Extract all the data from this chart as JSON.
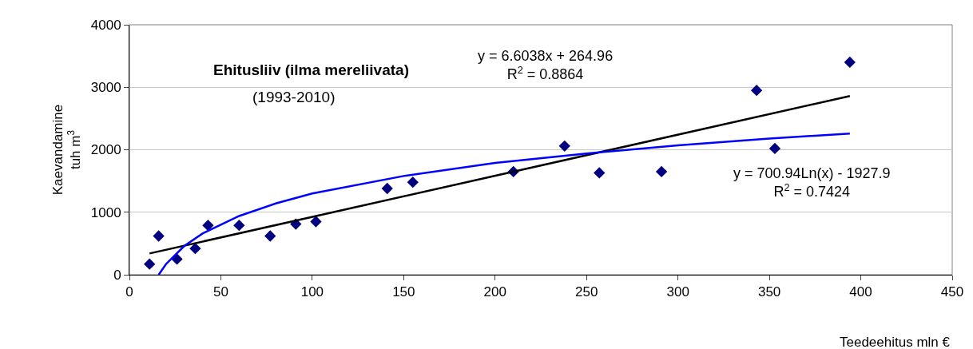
{
  "chart_data": {
    "type": "scatter",
    "ylabel": "Kaevandamine\ntuh m$^{3}$",
    "xlabel": "Teedeehitus mln €",
    "annotations": [
      "Ehitusliiv (ilma mereliivata)",
      "(1993-2010)",
      "y = 6.6038x + 264.96\nR$^{2}$ = 0.8864",
      "y = 700.94Ln(x) - 1927.9\nR$^{2}$ = 0.7424"
    ],
    "series": [
      {
        "color": "#000080",
        "marker": "diamond",
        "x": [
          11,
          16,
          26,
          36,
          43,
          60,
          77,
          91,
          102,
          141,
          155,
          210,
          238,
          257,
          291,
          343,
          353,
          394
        ],
        "values": [
          170,
          620,
          250,
          420,
          790,
          790,
          620,
          810,
          850,
          1380,
          1480,
          1650,
          2060,
          1630,
          1650,
          2950,
          2020,
          3400
        ]
      },
      {
        "type": "line",
        "color": "#000000",
        "line_style": "solid",
        "x": [
          11,
          394
        ],
        "values": [
          340,
          2860
        ]
      },
      {
        "type": "line",
        "color": "#0000ff",
        "line_style": "solid",
        "x": [
          16,
          20,
          30,
          40,
          60,
          80,
          100,
          150,
          200,
          250,
          300,
          350,
          394
        ],
        "values": [
          0,
          170,
          460,
          660,
          940,
          1140,
          1300,
          1580,
          1790,
          1940,
          2070,
          2180,
          2260
        ]
      }
    ],
    "xlim": [
      0,
      450
    ],
    "xticks": [
      0,
      50,
      100,
      150,
      200,
      250,
      300,
      350,
      400,
      450
    ],
    "ylim": [
      0,
      4000
    ],
    "yticks": [
      0,
      1000,
      2000,
      3000,
      4000
    ],
    "grid": "y"
  }
}
